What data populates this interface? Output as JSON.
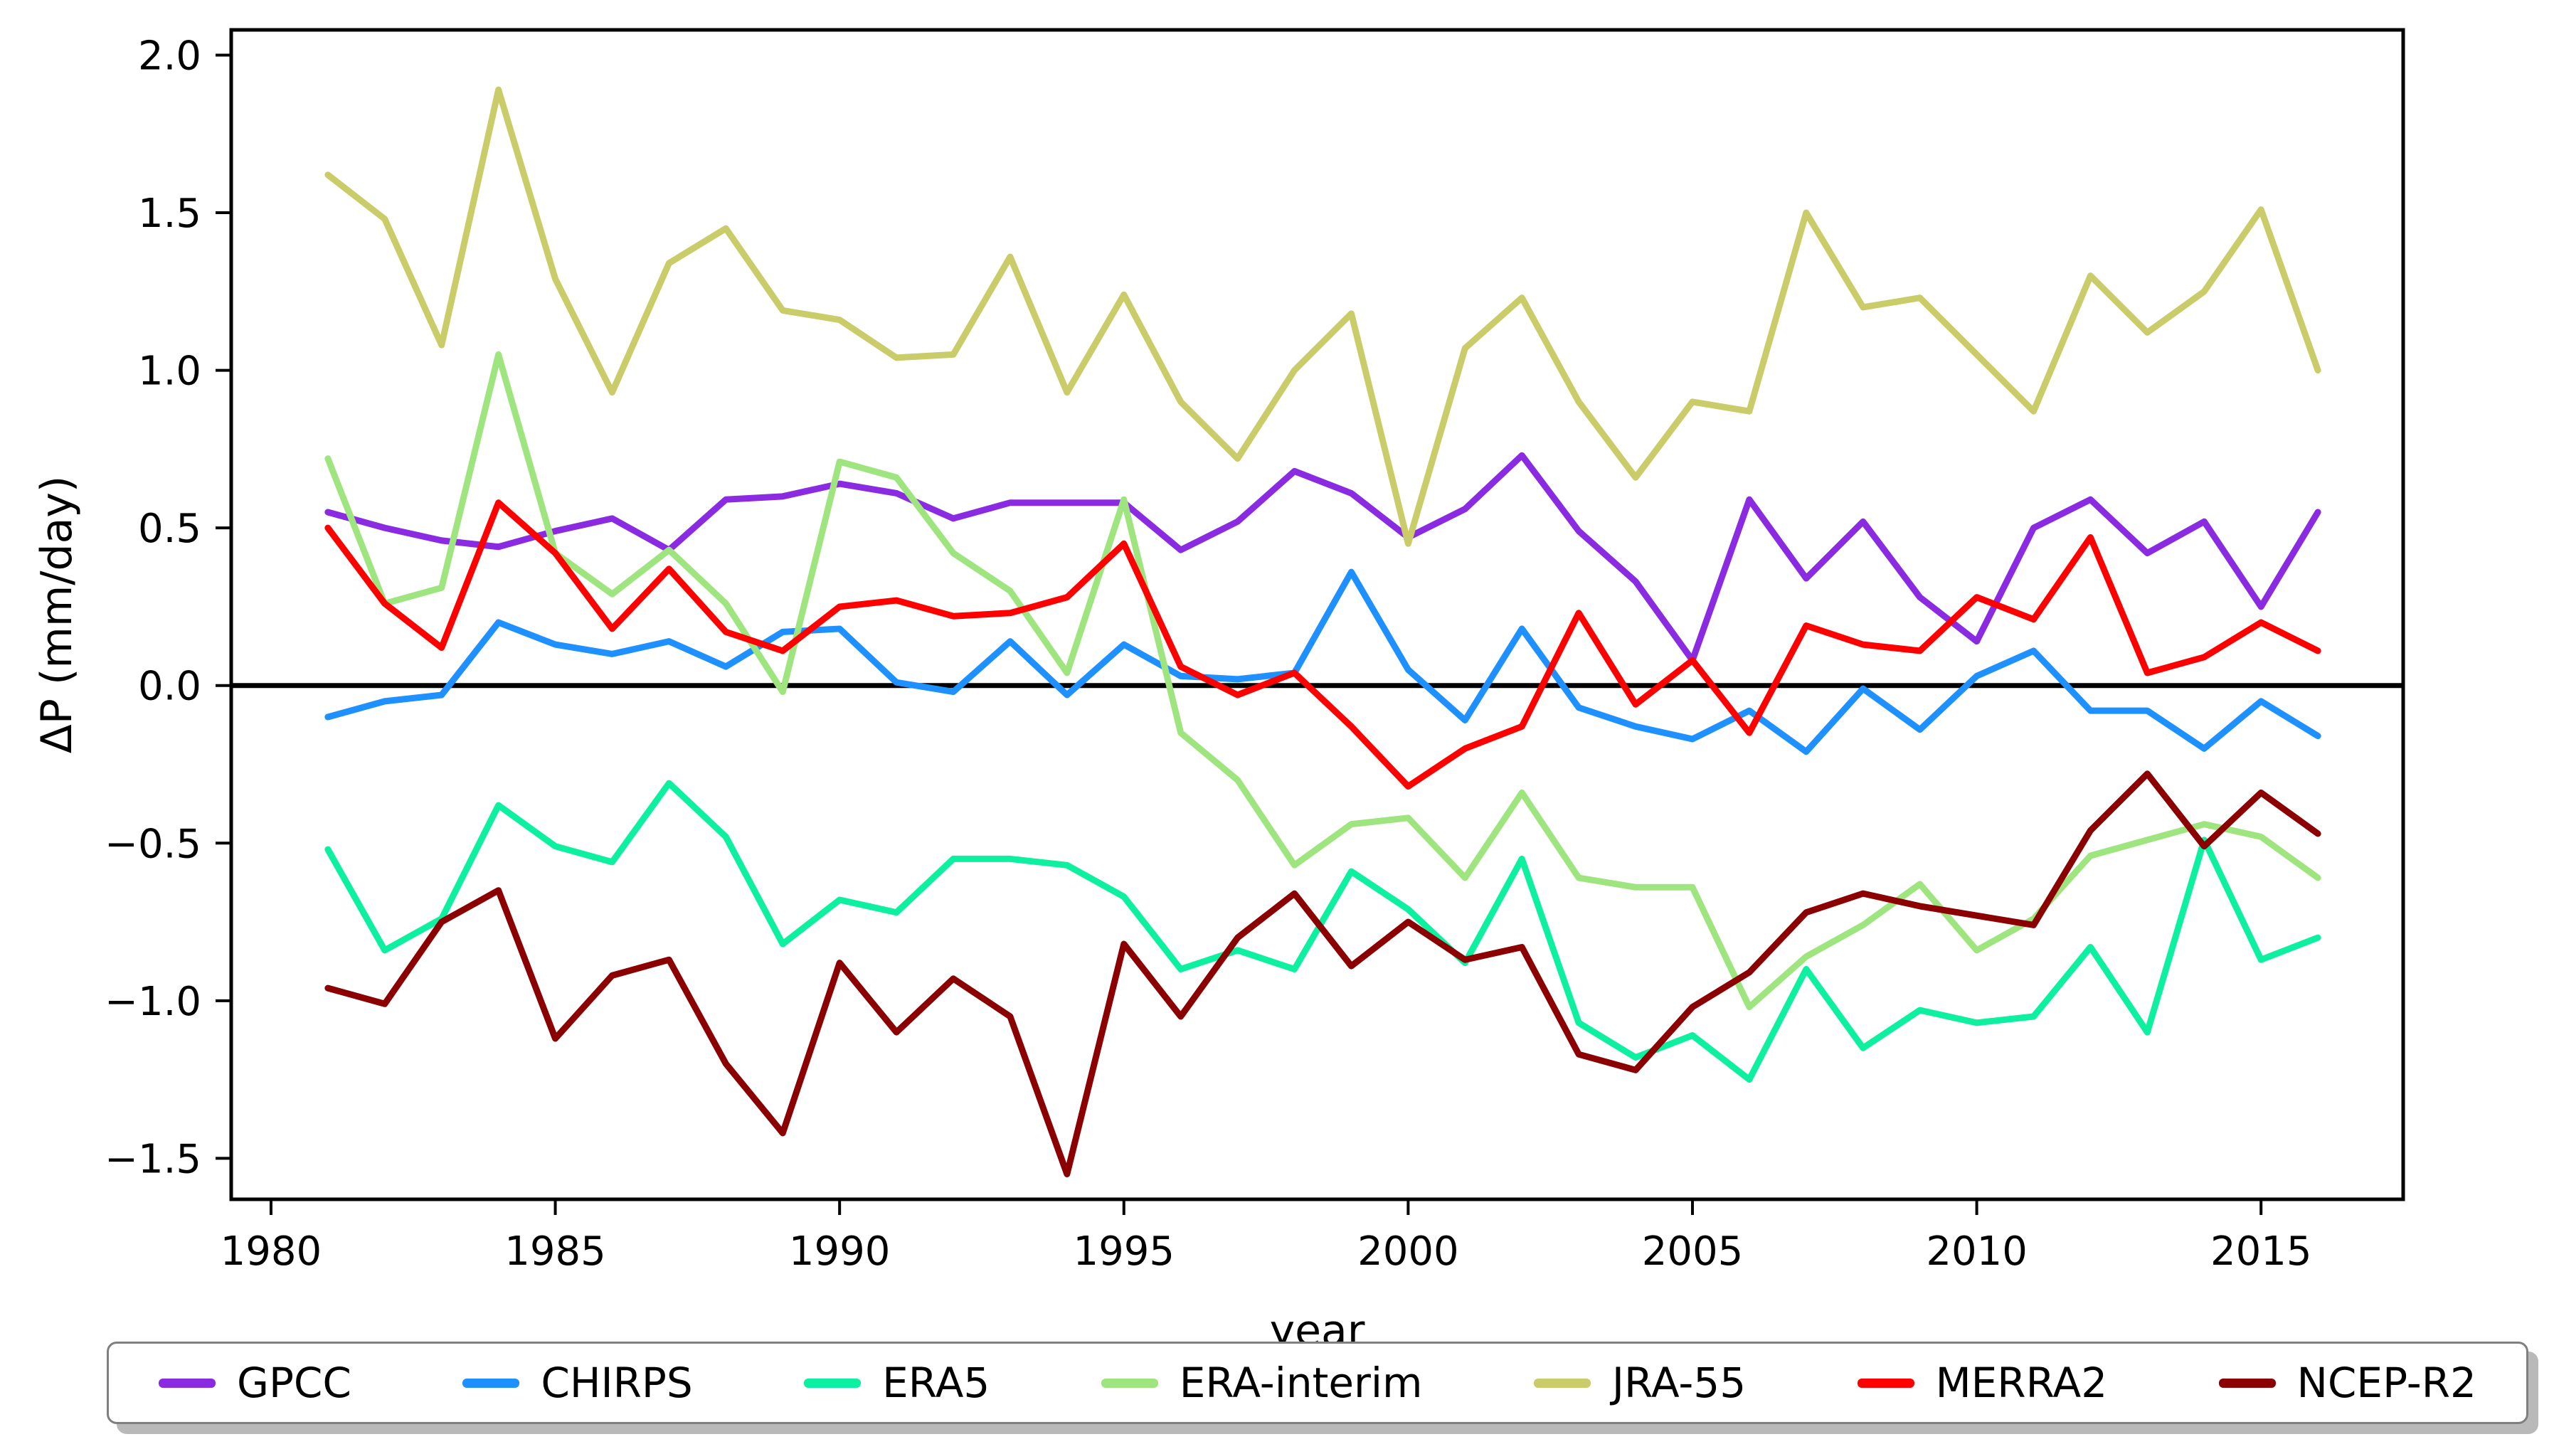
{
  "chart_data": {
    "type": "line",
    "title": "",
    "xlabel": "year",
    "ylabel": "ΔP (mm/day)",
    "grid": false,
    "legend_position": "bottom",
    "xlim": [
      1979.3,
      2017.5
    ],
    "ylim": [
      -1.63,
      2.08
    ],
    "x_ticks": [
      1980,
      1985,
      1990,
      1995,
      2000,
      2005,
      2010,
      2015
    ],
    "y_ticks": [
      2.0,
      1.5,
      1.0,
      0.5,
      0.0,
      -0.5,
      -1.0,
      -1.5
    ],
    "zero_line_value": 0.0,
    "x": [
      1981,
      1982,
      1983,
      1984,
      1985,
      1986,
      1987,
      1988,
      1989,
      1990,
      1991,
      1992,
      1993,
      1994,
      1995,
      1996,
      1997,
      1998,
      1999,
      2000,
      2001,
      2002,
      2003,
      2004,
      2005,
      2006,
      2007,
      2008,
      2009,
      2010,
      2011,
      2012,
      2013,
      2014,
      2015,
      2016
    ],
    "series": [
      {
        "name": "GPCC",
        "color": "#8a2be2",
        "values": [
          0.55,
          0.5,
          0.46,
          0.44,
          0.49,
          0.53,
          0.43,
          0.59,
          0.6,
          0.64,
          0.61,
          0.53,
          0.58,
          0.58,
          0.58,
          0.43,
          0.52,
          0.68,
          0.61,
          0.47,
          0.56,
          0.73,
          0.49,
          0.33,
          0.08,
          0.59,
          0.34,
          0.52,
          0.28,
          0.14,
          0.5,
          0.59,
          0.42,
          0.52,
          0.25,
          0.55
        ]
      },
      {
        "name": "CHIRPS",
        "color": "#1e90ff",
        "values": [
          -0.1,
          -0.05,
          -0.03,
          0.2,
          0.13,
          0.1,
          0.14,
          0.06,
          0.17,
          0.18,
          0.01,
          -0.02,
          0.14,
          -0.03,
          0.13,
          0.03,
          0.02,
          0.04,
          0.36,
          0.05,
          -0.11,
          0.18,
          -0.07,
          -0.13,
          -0.17,
          -0.08,
          -0.21,
          -0.01,
          -0.14,
          0.03,
          0.11,
          -0.08,
          -0.08,
          -0.2,
          -0.05,
          -0.16
        ]
      },
      {
        "name": "ERA5",
        "color": "#0cf0a0",
        "values": [
          -0.52,
          -0.84,
          -0.74,
          -0.38,
          -0.51,
          -0.56,
          -0.31,
          -0.48,
          -0.82,
          -0.68,
          -0.72,
          -0.55,
          -0.55,
          -0.57,
          -0.67,
          -0.9,
          -0.84,
          -0.9,
          -0.59,
          -0.71,
          -0.88,
          -0.55,
          -1.07,
          -1.18,
          -1.11,
          -1.25,
          -0.9,
          -1.15,
          -1.03,
          -1.07,
          -1.05,
          -0.83,
          -1.1,
          -0.49,
          -0.87,
          -0.8
        ]
      },
      {
        "name": "ERA-interim",
        "color": "#9fe57f",
        "values": [
          0.72,
          0.26,
          0.31,
          1.05,
          0.42,
          0.29,
          0.43,
          0.26,
          -0.02,
          0.71,
          0.66,
          0.42,
          0.3,
          0.04,
          0.59,
          -0.15,
          -0.3,
          -0.57,
          -0.44,
          -0.42,
          -0.61,
          -0.34,
          -0.61,
          -0.64,
          -0.64,
          -1.02,
          -0.86,
          -0.76,
          -0.63,
          -0.84,
          -0.74,
          -0.54,
          -0.49,
          -0.44,
          -0.48,
          -0.61
        ]
      },
      {
        "name": "JRA-55",
        "color": "#c9cc68",
        "values": [
          1.62,
          1.48,
          1.08,
          1.89,
          1.29,
          0.93,
          1.34,
          1.45,
          1.19,
          1.16,
          1.04,
          1.05,
          1.36,
          0.93,
          1.24,
          0.9,
          0.72,
          1.0,
          1.18,
          0.45,
          1.07,
          1.23,
          0.9,
          0.66,
          0.9,
          0.87,
          1.5,
          1.2,
          1.23,
          1.05,
          0.87,
          1.3,
          1.12,
          1.25,
          1.51,
          1.0
        ]
      },
      {
        "name": "MERRA2",
        "color": "#ff0000",
        "values": [
          0.5,
          0.26,
          0.12,
          0.58,
          0.42,
          0.18,
          0.37,
          0.17,
          0.11,
          0.25,
          0.27,
          0.22,
          0.23,
          0.28,
          0.45,
          0.06,
          -0.03,
          0.04,
          -0.13,
          -0.32,
          -0.2,
          -0.13,
          0.23,
          -0.06,
          0.08,
          -0.15,
          0.19,
          0.13,
          0.11,
          0.28,
          0.21,
          0.47,
          0.04,
          0.09,
          0.2,
          0.11
        ]
      },
      {
        "name": "NCEP-R2",
        "color": "#8b0000",
        "values": [
          -0.96,
          -1.01,
          -0.75,
          -0.65,
          -1.12,
          -0.92,
          -0.87,
          -1.2,
          -1.42,
          -0.88,
          -1.1,
          -0.93,
          -1.05,
          -1.55,
          -0.82,
          -1.05,
          -0.8,
          -0.66,
          -0.89,
          -0.75,
          -0.87,
          -0.83,
          -1.17,
          -1.22,
          -1.02,
          -0.91,
          -0.72,
          -0.66,
          -0.7,
          -0.73,
          -0.76,
          -0.46,
          -0.28,
          -0.51,
          -0.34,
          -0.47
        ]
      }
    ]
  }
}
